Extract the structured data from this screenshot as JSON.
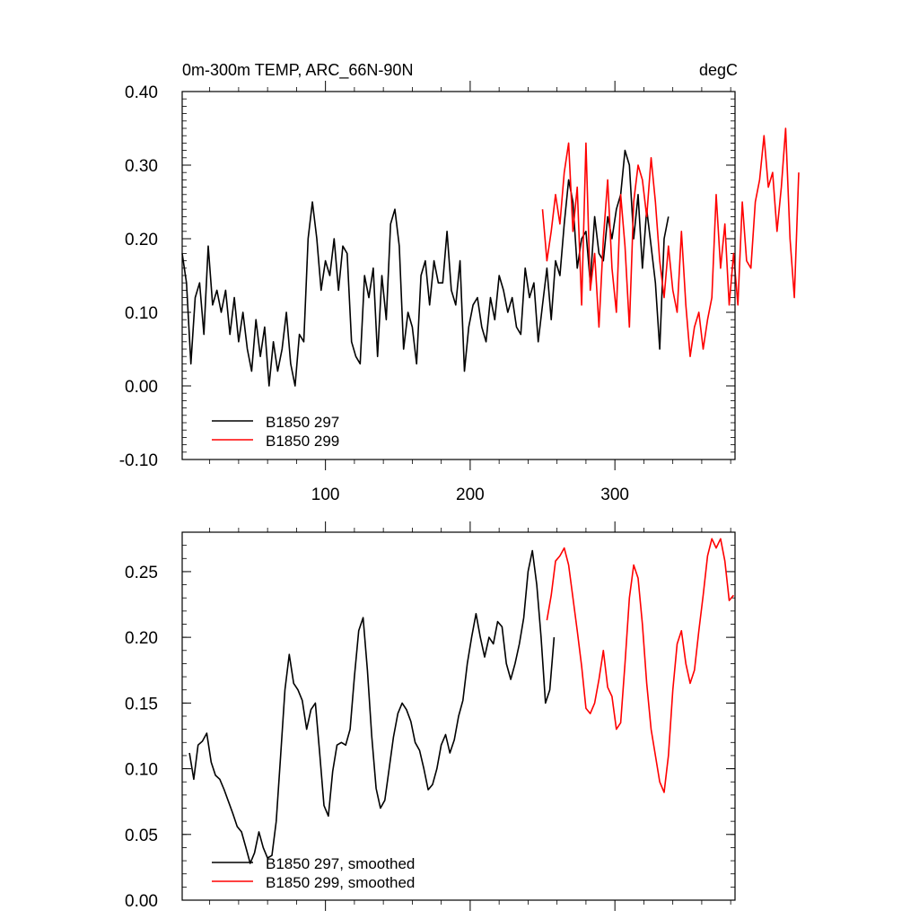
{
  "chart_data": [
    {
      "type": "line",
      "title": "0m-300m TEMP, ARC_66N-90N",
      "units": "degC",
      "xlim": [
        1,
        383
      ],
      "ylim": [
        -0.1,
        0.4
      ],
      "yticks": [
        -0.1,
        0.0,
        0.1,
        0.2,
        0.3,
        0.4
      ],
      "ytick_labels": [
        "-0.10",
        "0.00",
        "0.10",
        "0.20",
        "0.30",
        "0.40"
      ],
      "xticks": [
        100,
        200,
        300
      ],
      "xtick_labels": [
        "100",
        "200",
        "300"
      ],
      "legend_position": "bottom-left",
      "series": [
        {
          "name": "B1850 297",
          "label": "B1850 297",
          "color": "#000000",
          "x_start": 1,
          "x_step": 3,
          "values": [
            0.18,
            0.14,
            0.03,
            0.12,
            0.14,
            0.07,
            0.19,
            0.11,
            0.13,
            0.1,
            0.13,
            0.07,
            0.12,
            0.06,
            0.1,
            0.05,
            0.02,
            0.09,
            0.04,
            0.08,
            0.0,
            0.06,
            0.02,
            0.05,
            0.1,
            0.03,
            0.0,
            0.07,
            0.06,
            0.2,
            0.25,
            0.2,
            0.13,
            0.17,
            0.15,
            0.2,
            0.13,
            0.19,
            0.18,
            0.06,
            0.04,
            0.03,
            0.15,
            0.12,
            0.16,
            0.04,
            0.15,
            0.09,
            0.22,
            0.24,
            0.19,
            0.05,
            0.1,
            0.08,
            0.03,
            0.15,
            0.17,
            0.11,
            0.17,
            0.14,
            0.14,
            0.21,
            0.13,
            0.11,
            0.17,
            0.02,
            0.08,
            0.11,
            0.12,
            0.08,
            0.06,
            0.12,
            0.09,
            0.15,
            0.13,
            0.1,
            0.12,
            0.08,
            0.07,
            0.16,
            0.12,
            0.14,
            0.06,
            0.11,
            0.16,
            0.09,
            0.17,
            0.15,
            0.22,
            0.28,
            0.25,
            0.16,
            0.2,
            0.21,
            0.14,
            0.23,
            0.18,
            0.17,
            0.23,
            0.2,
            0.24,
            0.26,
            0.32,
            0.3,
            0.2,
            0.26,
            0.16,
            0.24,
            0.19,
            0.14,
            0.05,
            0.2,
            0.23
          ]
        },
        {
          "name": "B1850 299",
          "label": "B1850 299",
          "color": "#ff0000",
          "x_start": 250,
          "x_step": 3,
          "values": [
            0.24,
            0.17,
            0.21,
            0.26,
            0.22,
            0.29,
            0.33,
            0.21,
            0.27,
            0.11,
            0.33,
            0.13,
            0.18,
            0.08,
            0.2,
            0.28,
            0.16,
            0.1,
            0.26,
            0.19,
            0.08,
            0.25,
            0.3,
            0.28,
            0.23,
            0.31,
            0.25,
            0.17,
            0.12,
            0.19,
            0.13,
            0.1,
            0.21,
            0.11,
            0.04,
            0.08,
            0.1,
            0.05,
            0.09,
            0.12,
            0.26,
            0.16,
            0.22,
            0.11,
            0.18,
            0.11,
            0.25,
            0.17,
            0.16,
            0.25,
            0.28,
            0.34,
            0.27,
            0.29,
            0.21,
            0.27,
            0.35,
            0.2,
            0.12,
            0.29
          ]
        }
      ]
    },
    {
      "type": "line",
      "title": "",
      "xlim": [
        1,
        383
      ],
      "ylim": [
        0.0,
        0.28
      ],
      "yticks": [
        0.0,
        0.05,
        0.1,
        0.15,
        0.2,
        0.25
      ],
      "ytick_labels": [
        "0.00",
        "0.05",
        "0.10",
        "0.15",
        "0.20",
        "0.25"
      ],
      "xticks": [
        100,
        200,
        300
      ],
      "legend_position": "bottom-left",
      "series": [
        {
          "name": "B1850 297, smoothed",
          "label": "B1850 297, smoothed",
          "color": "#000000",
          "x_start": 6,
          "x_step": 3,
          "values": [
            0.112,
            0.092,
            0.118,
            0.121,
            0.127,
            0.105,
            0.095,
            0.092,
            0.084,
            0.075,
            0.066,
            0.056,
            0.052,
            0.04,
            0.028,
            0.036,
            0.052,
            0.04,
            0.032,
            0.034,
            0.06,
            0.11,
            0.16,
            0.187,
            0.165,
            0.16,
            0.152,
            0.13,
            0.145,
            0.15,
            0.112,
            0.072,
            0.064,
            0.098,
            0.118,
            0.12,
            0.118,
            0.13,
            0.17,
            0.205,
            0.215,
            0.175,
            0.125,
            0.085,
            0.07,
            0.076,
            0.1,
            0.124,
            0.142,
            0.15,
            0.145,
            0.136,
            0.12,
            0.114,
            0.1,
            0.084,
            0.088,
            0.1,
            0.118,
            0.126,
            0.112,
            0.122,
            0.14,
            0.152,
            0.18,
            0.2,
            0.218,
            0.2,
            0.185,
            0.2,
            0.195,
            0.212,
            0.208,
            0.18,
            0.168,
            0.18,
            0.195,
            0.215,
            0.25,
            0.266,
            0.24,
            0.2,
            0.15,
            0.16,
            0.2
          ]
        },
        {
          "name": "B1850 299, smoothed",
          "label": "B1850 299, smoothed",
          "color": "#ff0000",
          "x_start": 253,
          "x_step": 3,
          "values": [
            0.213,
            0.232,
            0.258,
            0.262,
            0.268,
            0.255,
            0.23,
            0.205,
            0.178,
            0.146,
            0.142,
            0.15,
            0.168,
            0.19,
            0.162,
            0.155,
            0.13,
            0.135,
            0.18,
            0.23,
            0.255,
            0.245,
            0.21,
            0.165,
            0.13,
            0.11,
            0.09,
            0.082,
            0.11,
            0.16,
            0.195,
            0.205,
            0.18,
            0.165,
            0.175,
            0.205,
            0.232,
            0.262,
            0.275,
            0.268,
            0.275,
            0.258,
            0.228,
            0.232
          ]
        }
      ]
    }
  ]
}
